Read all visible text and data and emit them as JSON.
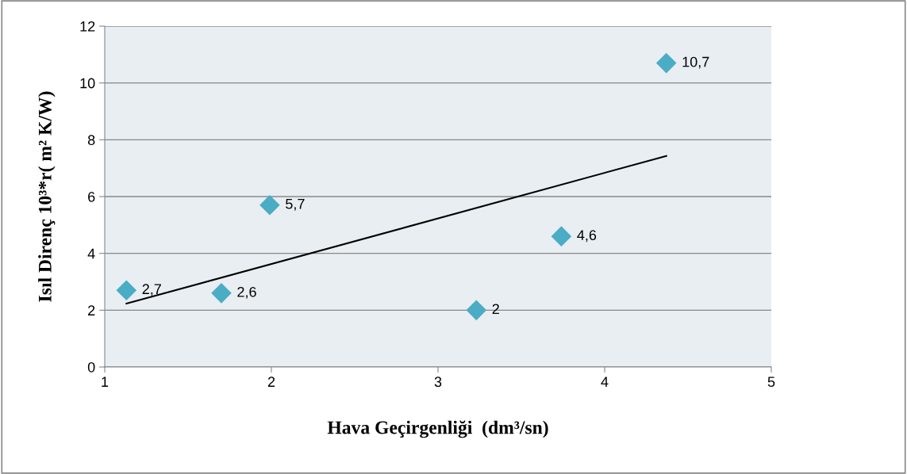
{
  "chart_data": {
    "type": "scatter",
    "xlabel": "Hava Geçirgenliği  (dm³/sn)",
    "ylabel": "Isıl Direnç 10³*r( m² K/W)",
    "xlim": [
      1,
      5
    ],
    "xticks": [
      1,
      2,
      3,
      4,
      5
    ],
    "ylim": [
      0,
      12
    ],
    "yticks": [
      0,
      2,
      4,
      6,
      8,
      10,
      12
    ],
    "grid": "y",
    "series": [
      {
        "color": "#4bacc6",
        "marker": "diamond",
        "x": [
          1.13,
          1.7,
          1.99,
          3.23,
          3.74,
          4.37
        ],
        "values": [
          2.7,
          2.6,
          5.7,
          2,
          4.6,
          10.7
        ],
        "value_labels": [
          "2,7",
          "2,6",
          "5,7",
          "2",
          "4,6",
          "10,7"
        ]
      },
      {
        "type": "line",
        "marker": "none",
        "color": "#000000",
        "x": [
          1.13,
          4.37
        ],
        "values": [
          2.23,
          7.43
        ]
      }
    ]
  }
}
